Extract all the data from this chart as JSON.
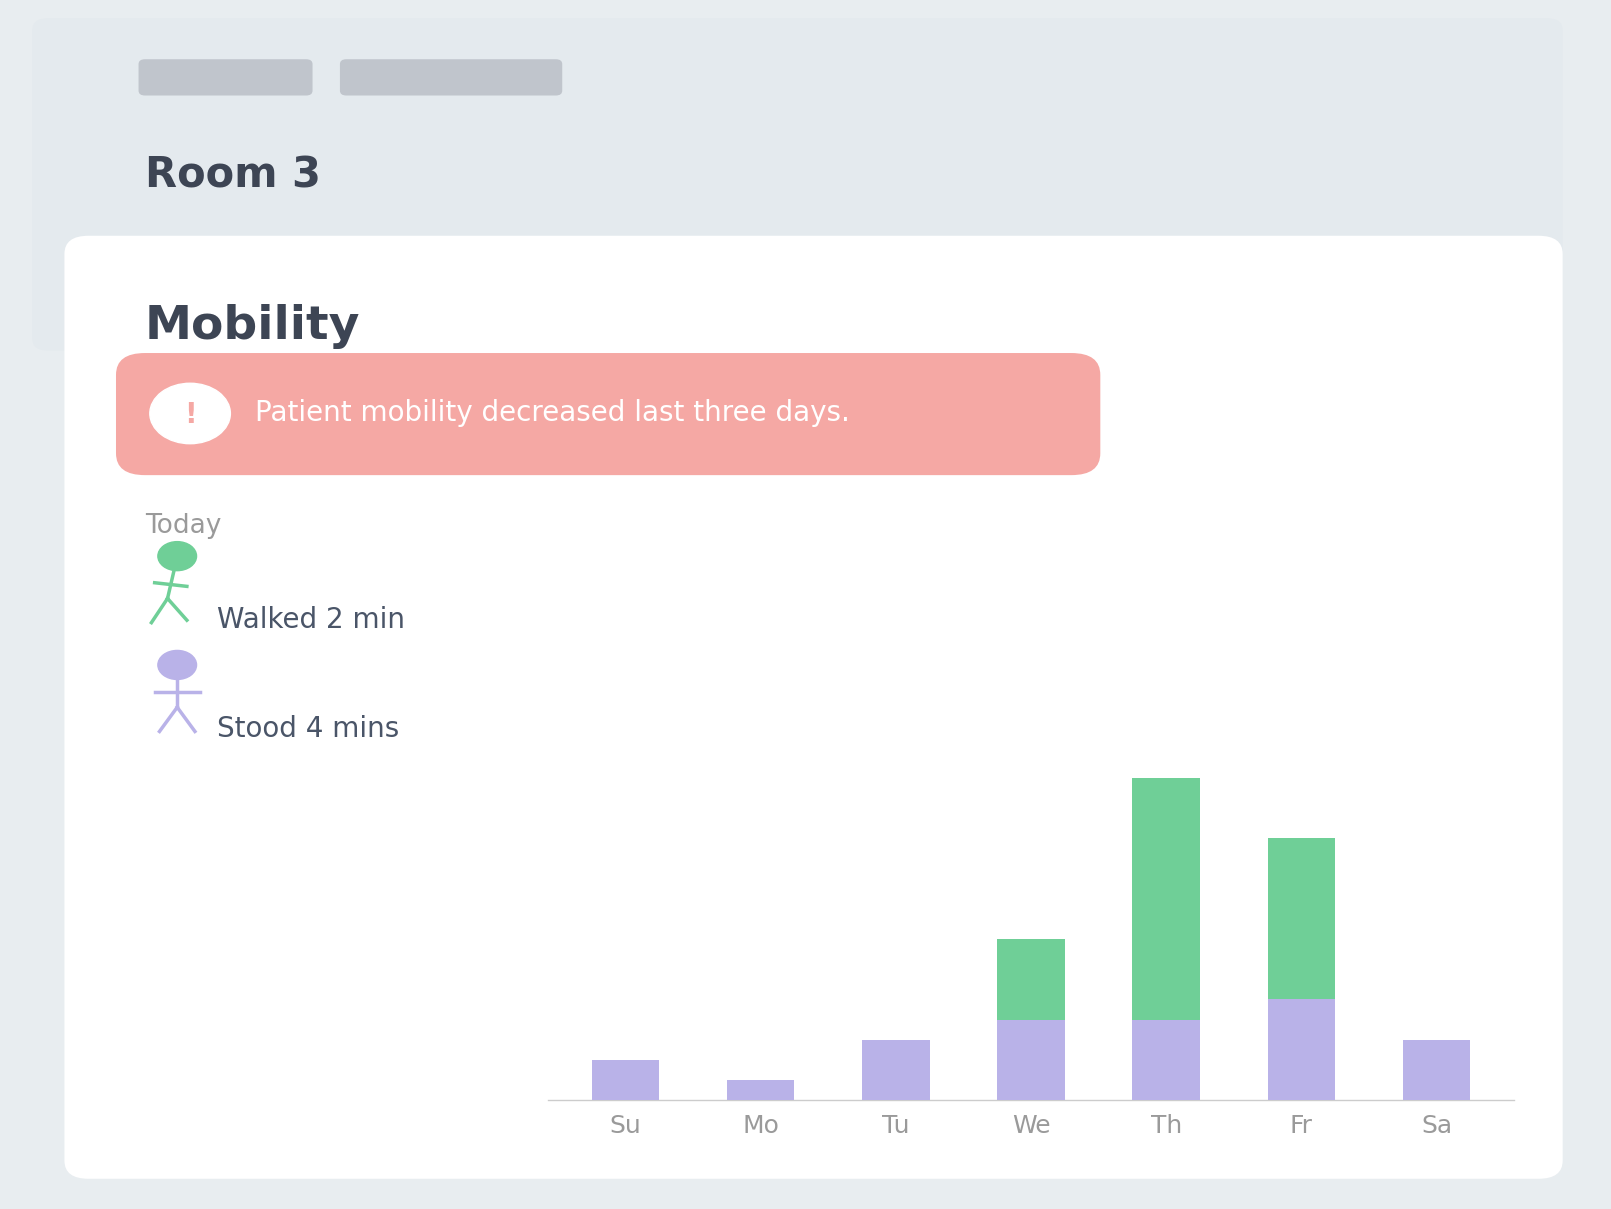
{
  "title": "Mobility",
  "room_label": "Room 3",
  "warning_text": "Patient mobility decreased last three days.",
  "today_label": "Today",
  "walked_label": "Walked 2 min",
  "stood_label": "Stood 4 mins",
  "days": [
    "Su",
    "Mo",
    "Tu",
    "We",
    "Th",
    "Fr",
    "Sa"
  ],
  "walked_values": [
    0,
    0,
    0,
    2,
    6,
    4,
    0
  ],
  "stood_values": [
    1,
    0.5,
    1.5,
    2,
    2,
    2.5,
    1.5
  ],
  "walked_color": "#6fcf97",
  "stood_color": "#b9b2e8",
  "bar_width": 0.5,
  "background_outer": "#e8edf0",
  "background_card": "#ffffff",
  "background_header": "#e4eaee",
  "title_color": "#3d4554",
  "warning_bg": "#f5a8a4",
  "warning_text_color": "#ffffff",
  "today_color": "#9a9a9a",
  "label_color": "#4a5568",
  "axis_label_color": "#9a9a9a",
  "walked_icon_color": "#6fcf97",
  "stood_icon_color": "#b9b2e8",
  "placeholder_color": "#c0c5cc"
}
